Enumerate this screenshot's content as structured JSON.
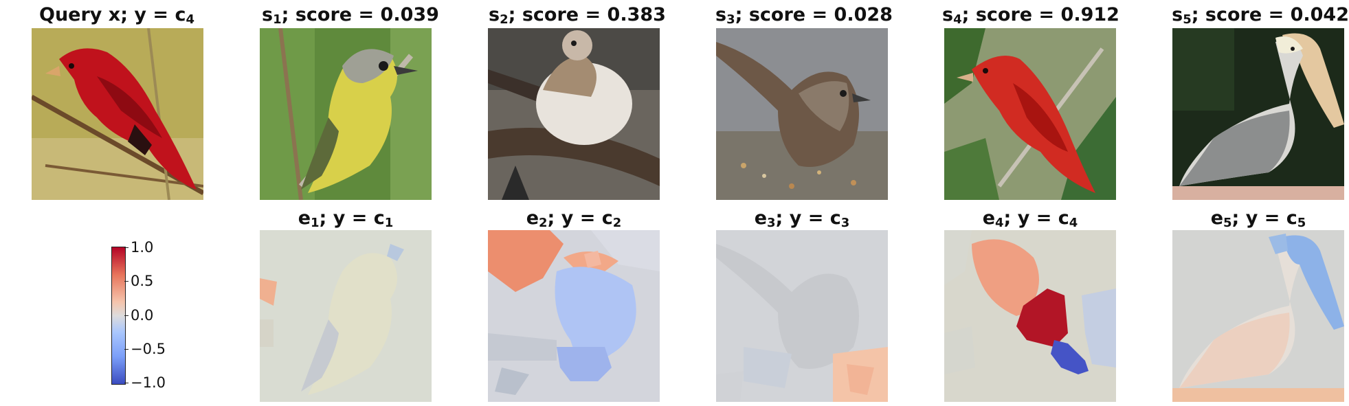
{
  "query": {
    "title": "Query x; y = c",
    "sub": "4"
  },
  "similar": [
    {
      "label": "s",
      "sub": "1",
      "score_text": "; score = 0.039"
    },
    {
      "label": "s",
      "sub": "2",
      "score_text": "; score = 0.383"
    },
    {
      "label": "s",
      "sub": "3",
      "score_text": "; score = 0.028"
    },
    {
      "label": "s",
      "sub": "4",
      "score_text": "; score = 0.912"
    },
    {
      "label": "s",
      "sub": "5",
      "score_text": "; score = 0.042"
    }
  ],
  "explanations": [
    {
      "label": "e",
      "sub": "1",
      "mid": "; y = c",
      "sub2": "1"
    },
    {
      "label": "e",
      "sub": "2",
      "mid": "; y = c",
      "sub2": "2"
    },
    {
      "label": "e",
      "sub": "3",
      "mid": "; y = c",
      "sub2": "3"
    },
    {
      "label": "e",
      "sub": "4",
      "mid": "; y = c",
      "sub2": "4"
    },
    {
      "label": "e",
      "sub": "5",
      "mid": "; y = c",
      "sub2": "5"
    }
  ],
  "colorbar": {
    "ticks": [
      "1.0",
      "0.5",
      "0.0",
      "−0.5",
      "−1.0"
    ],
    "colormap": [
      "#b40426",
      "#e7745b",
      "#f5c4ac",
      "#dddcdc",
      "#aac7fd",
      "#7b9ff9",
      "#3b4cc0"
    ]
  },
  "images": {
    "query": "red-bird-photo",
    "s1": "yellow-vireo-photo",
    "s2": "pale-sparrow-photo",
    "s3": "brown-sparrow-photo",
    "s4": "red-tanager-photo",
    "s5": "pelican-photo"
  }
}
